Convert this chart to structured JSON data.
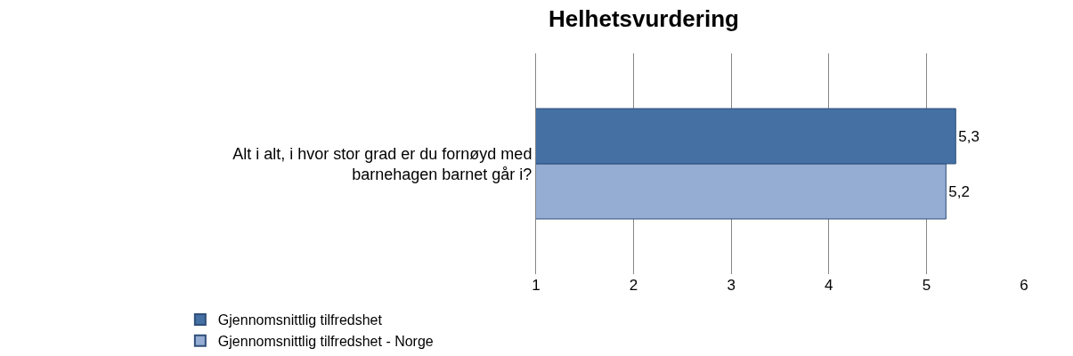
{
  "chart_data": {
    "type": "bar",
    "orientation": "horizontal",
    "title": "Helhetsvurdering",
    "categories": [
      "Alt i alt, i hvor stor grad er du fornøyd med barnehagen barnet går i?"
    ],
    "series": [
      {
        "name": "Gjennomsnittlig tilfredshet",
        "color": "#4470a4",
        "values": [
          5.3
        ],
        "value_labels": [
          "5,3"
        ]
      },
      {
        "name": "Gjennomsnittlig tilfredshet - Norge",
        "color": "#95acd3",
        "values": [
          5.2
        ],
        "value_labels": [
          "5,2"
        ]
      }
    ],
    "xlim": [
      1,
      6
    ],
    "xticks": [
      1,
      2,
      3,
      4,
      5,
      6
    ],
    "grid": "x",
    "legend": "bottom"
  }
}
